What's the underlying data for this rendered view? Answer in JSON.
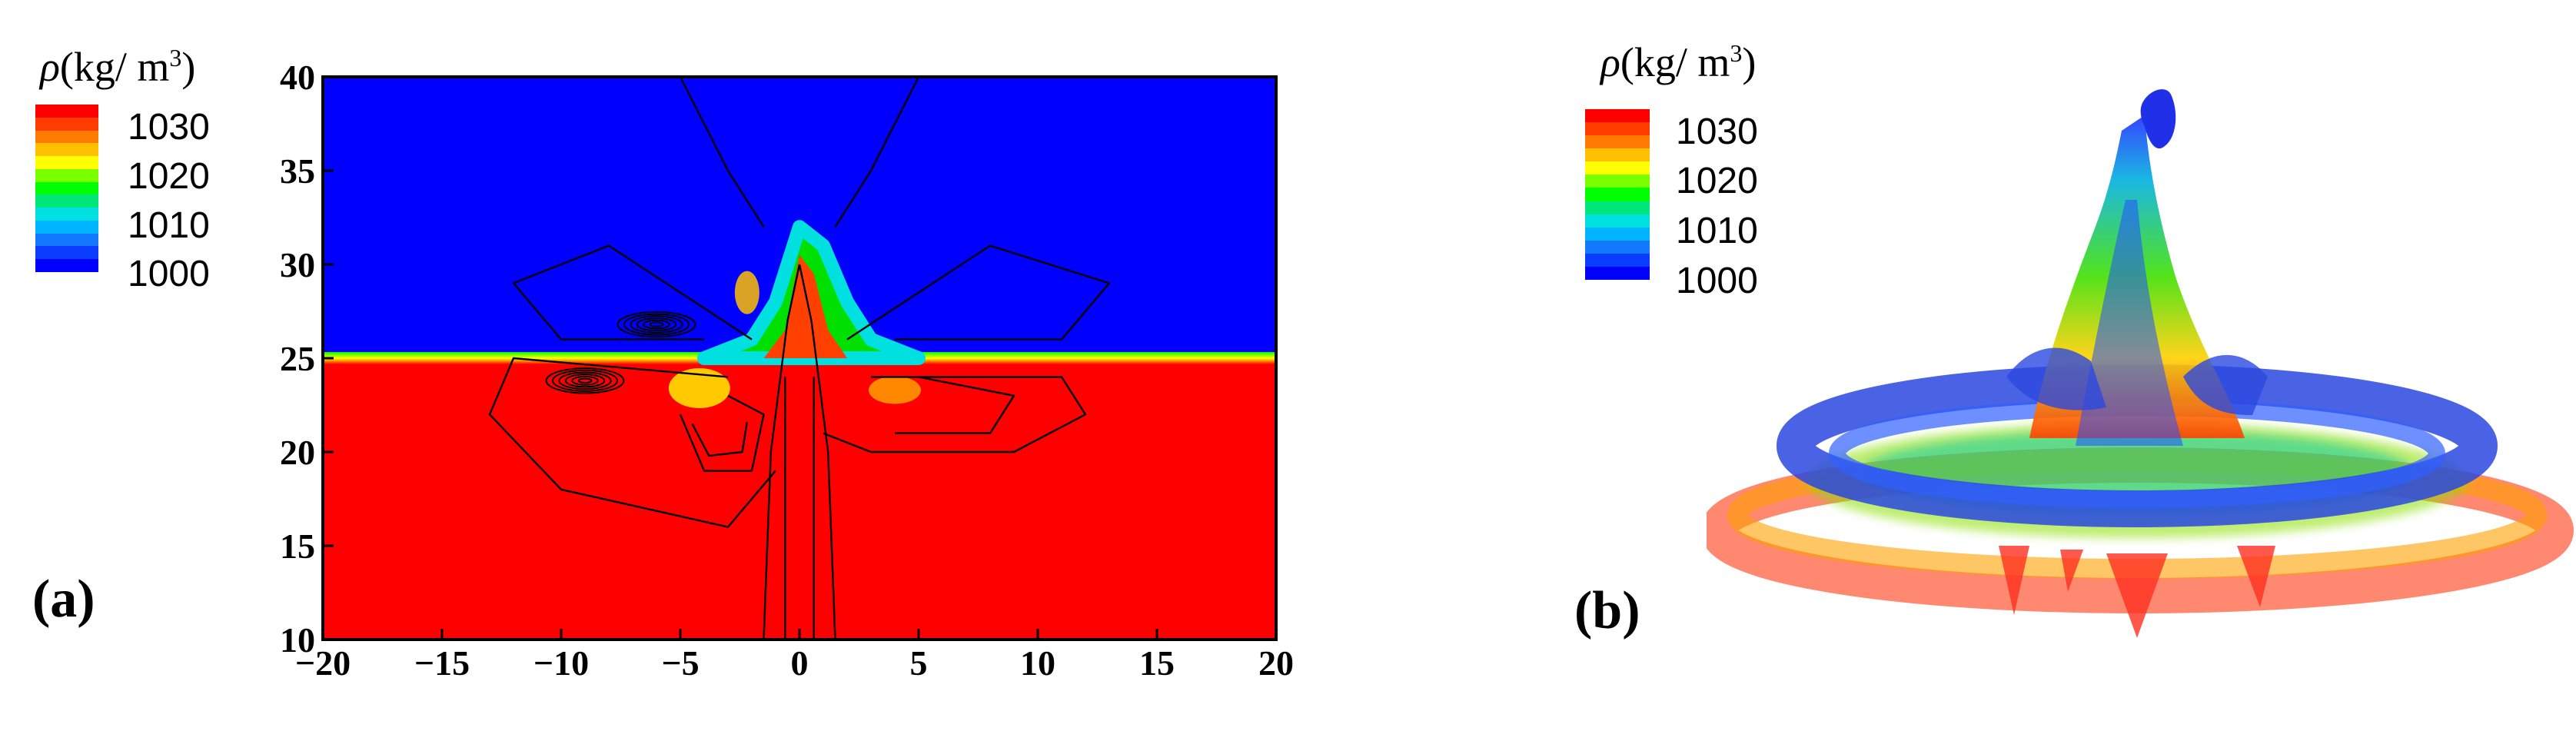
{
  "colorbar": {
    "symbol": "ρ",
    "unit_prefix": "(kg/ m",
    "unit_exp": "3",
    "unit_suffix": ")",
    "ticks": [
      "1030",
      "1020",
      "1010",
      "1000"
    ],
    "colors": [
      "#0000ff",
      "#0a3cff",
      "#1478ff",
      "#00b4ff",
      "#00e0e0",
      "#00e678",
      "#00ff00",
      "#7aff00",
      "#ffff00",
      "#ffc000",
      "#ff7a00",
      "#ff3c00",
      "#ff0000"
    ]
  },
  "panel_a": {
    "label": "(a)",
    "colors": {
      "upper": "#0000ff",
      "lower": "#ff0000",
      "streamline": "#000000"
    }
  },
  "panel_b": {
    "label": "(b)"
  },
  "chart_data": {
    "type": "heatmap",
    "title": "",
    "xlabel": "",
    "ylabel": "",
    "x_ticks": [
      "−20",
      "−15",
      "−10",
      "−5",
      "0",
      "5",
      "10",
      "15",
      "20"
    ],
    "y_ticks": [
      "40",
      "35",
      "30",
      "25",
      "20",
      "15",
      "10"
    ],
    "xlim": [
      -20,
      20
    ],
    "ylim": [
      10,
      40
    ],
    "value_range": [
      1000,
      1030
    ],
    "interface_y": 25,
    "plume_profile": [
      [
        -4,
        25
      ],
      [
        -2,
        26
      ],
      [
        -1,
        28
      ],
      [
        0,
        32
      ],
      [
        1,
        31
      ],
      [
        2,
        28
      ],
      [
        3,
        26
      ],
      [
        5,
        25
      ]
    ]
  }
}
